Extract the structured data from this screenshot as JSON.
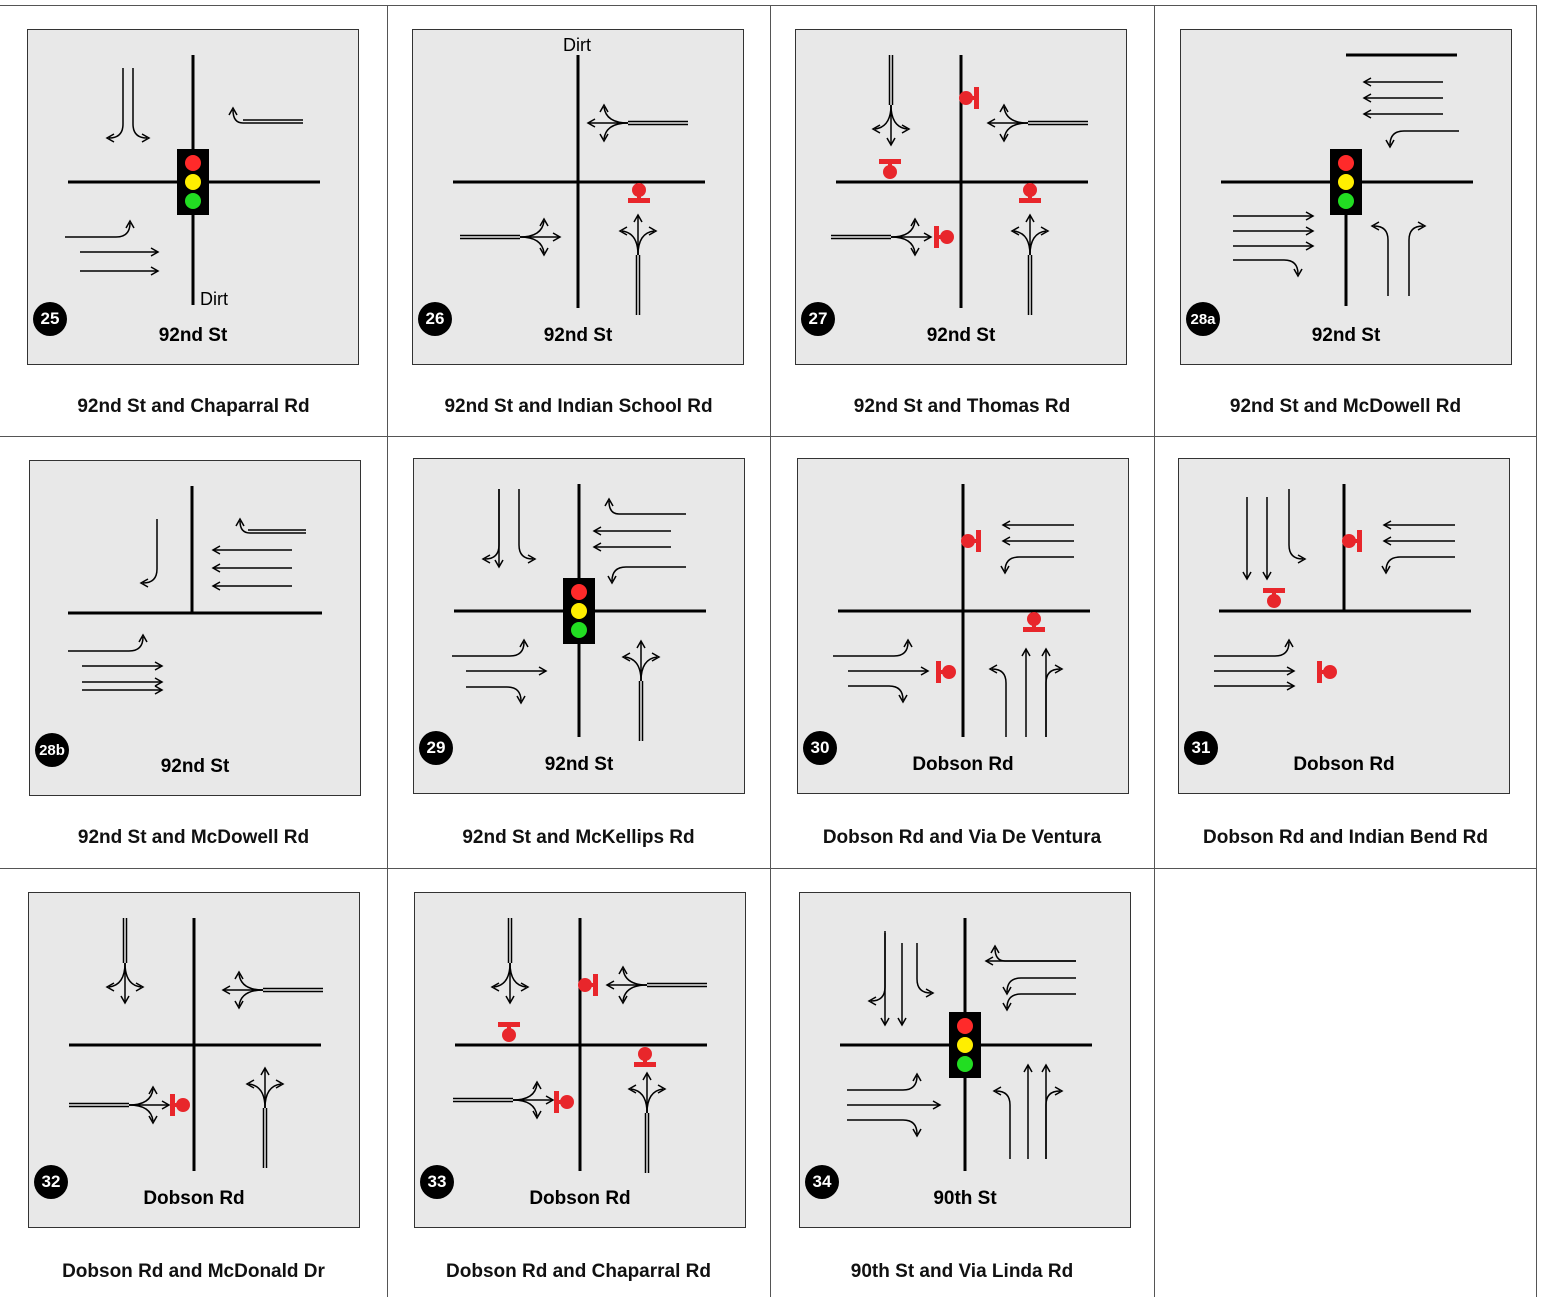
{
  "intersections": [
    {
      "id": "25",
      "road": "92nd St",
      "caption": "92nd St and Chaparral Rd",
      "control": "signal",
      "dirt": "Dirt",
      "dirt_pos": "bottom"
    },
    {
      "id": "26",
      "road": "92nd St",
      "caption": "92nd St and Indian School Rd",
      "control": "stop-se",
      "dirt": "Dirt",
      "dirt_pos": "top"
    },
    {
      "id": "27",
      "road": "92nd St",
      "caption": "92nd St and Thomas Rd",
      "control": "all-way-stop",
      "dirt": ""
    },
    {
      "id": "28a",
      "road": "92nd St",
      "caption": "92nd St and McDowell Rd",
      "control": "signal",
      "dirt": ""
    },
    {
      "id": "28b",
      "road": "92nd St",
      "caption": "92nd St and McDowell Rd",
      "control": "none",
      "dirt": ""
    },
    {
      "id": "29",
      "road": "92nd St",
      "caption": "92nd St and McKellips Rd",
      "control": "signal",
      "dirt": ""
    },
    {
      "id": "30",
      "road": "Dobson Rd",
      "caption": "Dobson Rd and Via De Ventura",
      "control": "three-stop",
      "dirt": ""
    },
    {
      "id": "31",
      "road": "Dobson Rd",
      "caption": "Dobson Rd and Indian Bend Rd",
      "control": "three-stop-t",
      "dirt": ""
    },
    {
      "id": "32",
      "road": "Dobson Rd",
      "caption": "Dobson Rd and McDonald Dr",
      "control": "one-stop",
      "dirt": ""
    },
    {
      "id": "33",
      "road": "Dobson Rd",
      "caption": "Dobson Rd and Chaparral Rd",
      "control": "all-way-stop",
      "dirt": ""
    },
    {
      "id": "34",
      "road": "90th St",
      "caption": "90th St and Via Linda Rd",
      "control": "signal",
      "dirt": ""
    }
  ],
  "colors": {
    "panel": "#e8e8e8",
    "stop_sign": "#e8262b",
    "signal_red": "#ff2a2a",
    "signal_yellow": "#ffee00",
    "signal_green": "#22dd22"
  }
}
